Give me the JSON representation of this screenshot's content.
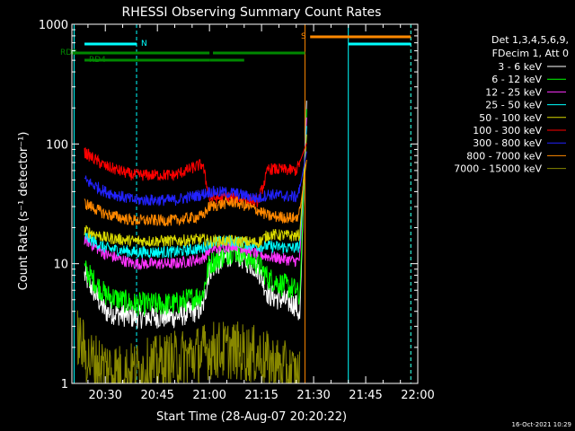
{
  "chart_data": {
    "type": "line",
    "title": "RHESSI Observing Summary Count Rates",
    "xlabel": "Start Time (28-Aug-07 20:20:22)",
    "ylabel": "Count Rate (s⁻¹ detector⁻¹)",
    "y_scale": "log",
    "ylim": [
      1,
      1000
    ],
    "xlim": [
      "20:20:22",
      "22:00:00"
    ],
    "x_ticks": [
      "20:30",
      "20:45",
      "21:00",
      "21:15",
      "21:30",
      "21:45",
      "22:00"
    ],
    "y_ticks": [
      "1",
      "10",
      "100",
      "1000"
    ],
    "legend_header": [
      "Det 1,3,4,5,6,9,",
      "FDecim 1, Att 0"
    ],
    "legend_position": "right",
    "grid": false,
    "timestamp": "16-Oct-2021 10:29",
    "series": [
      {
        "name": "3 - 6 keV",
        "color": "#ffffff",
        "values": [
          {
            "t": "20:24",
            "y": 8
          },
          {
            "t": "20:30",
            "y": 4
          },
          {
            "t": "20:38",
            "y": 3.6
          },
          {
            "t": "20:50",
            "y": 3.6
          },
          {
            "t": "20:58",
            "y": 4.2
          },
          {
            "t": "21:00",
            "y": 9
          },
          {
            "t": "21:07",
            "y": 12.5
          },
          {
            "t": "21:14",
            "y": 9
          },
          {
            "t": "21:17",
            "y": 5.5
          },
          {
            "t": "21:25",
            "y": 4.5
          },
          {
            "t": "21:26",
            "y": 3.5
          }
        ]
      },
      {
        "name": "6 - 12 keV",
        "color": "#00ff00",
        "values": [
          {
            "t": "20:24",
            "y": 9
          },
          {
            "t": "20:30",
            "y": 5.5
          },
          {
            "t": "20:38",
            "y": 4.6
          },
          {
            "t": "20:50",
            "y": 4.6
          },
          {
            "t": "20:58",
            "y": 5.5
          },
          {
            "t": "21:00",
            "y": 10
          },
          {
            "t": "21:07",
            "y": 13
          },
          {
            "t": "21:14",
            "y": 10
          },
          {
            "t": "21:17",
            "y": 7.5
          },
          {
            "t": "21:25",
            "y": 6
          },
          {
            "t": "21:26",
            "y": 5
          }
        ]
      },
      {
        "name": "12 - 25 keV",
        "color": "#ff33ff",
        "values": [
          {
            "t": "20:24",
            "y": 16
          },
          {
            "t": "20:30",
            "y": 12
          },
          {
            "t": "20:38",
            "y": 10
          },
          {
            "t": "20:50",
            "y": 10
          },
          {
            "t": "20:58",
            "y": 11
          },
          {
            "t": "21:00",
            "y": 13
          },
          {
            "t": "21:07",
            "y": 14.5
          },
          {
            "t": "21:14",
            "y": 12
          },
          {
            "t": "21:17",
            "y": 11.5
          },
          {
            "t": "21:25",
            "y": 10.5
          },
          {
            "t": "21:26",
            "y": 11
          }
        ]
      },
      {
        "name": "25 - 50 keV",
        "color": "#00ffff",
        "values": [
          {
            "t": "20:24",
            "y": 17
          },
          {
            "t": "20:30",
            "y": 13.5
          },
          {
            "t": "20:38",
            "y": 12.5
          },
          {
            "t": "20:50",
            "y": 12.5
          },
          {
            "t": "20:58",
            "y": 13.5
          },
          {
            "t": "21:00",
            "y": 15
          },
          {
            "t": "21:07",
            "y": 15.5
          },
          {
            "t": "21:14",
            "y": 14
          },
          {
            "t": "21:17",
            "y": 14
          },
          {
            "t": "21:25",
            "y": 13.5
          },
          {
            "t": "21:26",
            "y": 14
          }
        ]
      },
      {
        "name": "50 - 100 keV",
        "color": "#d8d800",
        "values": [
          {
            "t": "20:24",
            "y": 19
          },
          {
            "t": "20:30",
            "y": 16.5
          },
          {
            "t": "20:38",
            "y": 15.5
          },
          {
            "t": "20:50",
            "y": 15.5
          },
          {
            "t": "20:58",
            "y": 16
          },
          {
            "t": "21:00",
            "y": 15.5
          },
          {
            "t": "21:07",
            "y": 15.5
          },
          {
            "t": "21:14",
            "y": 15
          },
          {
            "t": "21:17",
            "y": 17.5
          },
          {
            "t": "21:25",
            "y": 17
          },
          {
            "t": "21:26",
            "y": 17.5
          }
        ]
      },
      {
        "name": "100 - 300 keV",
        "color": "#ff0000",
        "values": [
          {
            "t": "20:24",
            "y": 85
          },
          {
            "t": "20:30",
            "y": 65
          },
          {
            "t": "20:38",
            "y": 55
          },
          {
            "t": "20:50",
            "y": 55
          },
          {
            "t": "20:58",
            "y": 68
          },
          {
            "t": "21:00",
            "y": 35
          },
          {
            "t": "21:07",
            "y": 36
          },
          {
            "t": "21:14",
            "y": 33
          },
          {
            "t": "21:17",
            "y": 62
          },
          {
            "t": "21:25",
            "y": 60
          },
          {
            "t": "21:26",
            "y": 70
          }
        ]
      },
      {
        "name": "300 - 800 keV",
        "color": "#2222ff",
        "values": [
          {
            "t": "20:24",
            "y": 50
          },
          {
            "t": "20:30",
            "y": 40
          },
          {
            "t": "20:38",
            "y": 34
          },
          {
            "t": "20:50",
            "y": 34
          },
          {
            "t": "20:58",
            "y": 38
          },
          {
            "t": "21:00",
            "y": 40
          },
          {
            "t": "21:07",
            "y": 39
          },
          {
            "t": "21:14",
            "y": 35
          },
          {
            "t": "21:17",
            "y": 38
          },
          {
            "t": "21:25",
            "y": 36
          },
          {
            "t": "21:26",
            "y": 42
          }
        ]
      },
      {
        "name": "800 - 7000 keV",
        "color": "#ff8800",
        "values": [
          {
            "t": "20:24",
            "y": 32
          },
          {
            "t": "20:30",
            "y": 26
          },
          {
            "t": "20:38",
            "y": 23
          },
          {
            "t": "20:50",
            "y": 23
          },
          {
            "t": "20:58",
            "y": 25
          },
          {
            "t": "21:00",
            "y": 30
          },
          {
            "t": "21:07",
            "y": 33
          },
          {
            "t": "21:14",
            "y": 28
          },
          {
            "t": "21:17",
            "y": 25
          },
          {
            "t": "21:25",
            "y": 24
          },
          {
            "t": "21:26",
            "y": 27
          }
        ]
      },
      {
        "name": "7000 - 15000 keV",
        "color": "#888800",
        "values": [
          {
            "t": "20:22",
            "y": 2.5
          },
          {
            "t": "20:25",
            "y": 1.6
          },
          {
            "t": "20:35",
            "y": 1.2
          },
          {
            "t": "20:58",
            "y": 1.8
          },
          {
            "t": "21:00",
            "y": 1.9
          },
          {
            "t": "21:07",
            "y": 1.9
          },
          {
            "t": "21:14",
            "y": 1.7
          },
          {
            "t": "21:26",
            "y": 1.1
          }
        ]
      }
    ],
    "flags": [
      {
        "label": "RD0",
        "color": "#008800",
        "intervals": [
          [
            "20:20:22",
            "21:00"
          ],
          [
            "21:01",
            "21:27:30"
          ]
        ]
      },
      {
        "label": "RD4",
        "color": "#008800",
        "intervals": [
          [
            "20:24",
            "21:00"
          ],
          [
            "21:00",
            "21:10"
          ]
        ]
      },
      {
        "label": "N",
        "color": "#00ffff",
        "intervals": [
          [
            "20:24",
            "20:39"
          ],
          [
            "21:40",
            "21:58"
          ]
        ]
      },
      {
        "label": "S",
        "color": "#ff8800",
        "intervals": [
          [
            "21:29",
            "21:58"
          ]
        ]
      }
    ],
    "vertical_markers": [
      {
        "t": "20:21",
        "color": "#00ffff",
        "style": "solid"
      },
      {
        "t": "20:39",
        "color": "#00ffff",
        "style": "dashed"
      },
      {
        "t": "21:27:30",
        "color": "#ff8800",
        "style": "solid"
      },
      {
        "t": "21:40",
        "color": "#00ffff",
        "style": "solid"
      },
      {
        "t": "21:58",
        "color": "#ff8800",
        "style": "dashed"
      },
      {
        "t": "21:58",
        "color": "#00ffff",
        "style": "dashed"
      }
    ],
    "flare": {
      "start": "21:26",
      "peak": "21:28",
      "peak_value": 230
    }
  }
}
